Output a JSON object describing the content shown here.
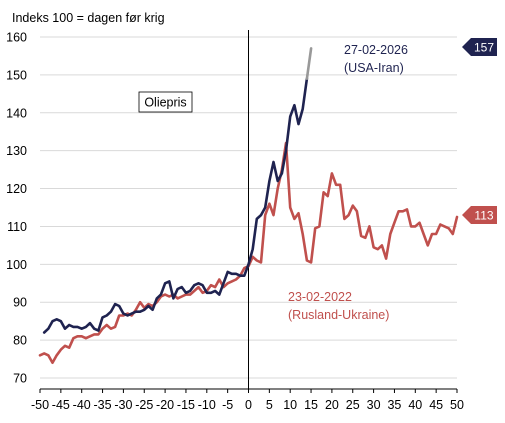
{
  "chart_data": {
    "type": "line",
    "ylabel": "Indeks 100 = dagen før krig",
    "xlim": [
      -50,
      50
    ],
    "ylim": [
      70,
      160
    ],
    "x_ticks": [
      -50,
      -45,
      -40,
      -35,
      -30,
      -25,
      -20,
      -15,
      -10,
      -5,
      0,
      5,
      10,
      15,
      20,
      25,
      30,
      35,
      40,
      45,
      50
    ],
    "y_ticks": [
      70,
      80,
      90,
      100,
      110,
      120,
      130,
      140,
      150,
      160
    ],
    "grid": "horizontal",
    "annotation_box": "Oliepris",
    "colors": {
      "usa_iran": "#1f2350",
      "usa_iran_projection": "#999999",
      "russia_ukraine": "#c0504d",
      "grid": "#d9d9d9",
      "axis": "#000000"
    },
    "series": [
      {
        "key": "usa_iran",
        "label_date": "27-02-2026",
        "label_name": "(USA-Iran)",
        "end_value": "157",
        "x": [
          -49,
          -48,
          -47,
          -46,
          -45,
          -44,
          -43,
          -42,
          -41,
          -40,
          -39,
          -38,
          -37,
          -36,
          -35,
          -34,
          -33,
          -32,
          -31,
          -30,
          -29,
          -28,
          -27,
          -26,
          -25,
          -24,
          -23,
          -22,
          -21,
          -20,
          -19,
          -18,
          -17,
          -16,
          -15,
          -14,
          -13,
          -12,
          -11,
          -10,
          -9,
          -8,
          -7,
          -6,
          -5,
          -4,
          -3,
          -2,
          -1,
          0,
          1,
          2,
          3,
          4,
          5,
          6,
          7,
          8,
          9,
          10,
          11,
          12,
          13,
          14
        ],
        "values": [
          82,
          83,
          85,
          85.5,
          85,
          83,
          84,
          83.5,
          83.5,
          83,
          83.5,
          84.5,
          83,
          82.5,
          86,
          86.5,
          87.5,
          89.5,
          89,
          87,
          86.5,
          87,
          87.5,
          87.5,
          88,
          89,
          88,
          91,
          92,
          95,
          95.5,
          91,
          93.5,
          94,
          92.5,
          93,
          94.5,
          95,
          94.5,
          92.5,
          92.5,
          93,
          92,
          95,
          98,
          97.5,
          97.5,
          97,
          97,
          100,
          104,
          112,
          113,
          115,
          122,
          127,
          122,
          124,
          130,
          139,
          142,
          137,
          141,
          149
        ]
      },
      {
        "key": "usa_iran_projection",
        "x": [
          14,
          15
        ],
        "values": [
          149,
          157
        ]
      },
      {
        "key": "russia_ukraine",
        "label_date": "23-02-2022",
        "label_name": "(Rusland-Ukraine)",
        "end_value": "113",
        "x": [
          -50,
          -49,
          -48,
          -47,
          -46,
          -45,
          -44,
          -43,
          -42,
          -41,
          -40,
          -39,
          -38,
          -37,
          -36,
          -35,
          -34,
          -33,
          -32,
          -31,
          -30,
          -29,
          -28,
          -27,
          -26,
          -25,
          -24,
          -23,
          -22,
          -21,
          -20,
          -19,
          -18,
          -17,
          -16,
          -15,
          -14,
          -13,
          -12,
          -11,
          -10,
          -9,
          -8,
          -7,
          -6,
          -5,
          -4,
          -3,
          -2,
          -1,
          0,
          1,
          2,
          3,
          4,
          5,
          6,
          7,
          8,
          9,
          10,
          11,
          12,
          13,
          14,
          15,
          16,
          17,
          18,
          19,
          20,
          21,
          22,
          23,
          24,
          25,
          26,
          27,
          28,
          29,
          30,
          31,
          32,
          33,
          34,
          35,
          36,
          37,
          38,
          39,
          40,
          41,
          42,
          43,
          44,
          45,
          46,
          47,
          48,
          49,
          50
        ],
        "values": [
          76,
          76.5,
          76,
          74,
          76,
          77.5,
          78.5,
          78,
          80.5,
          81,
          81,
          80.5,
          81,
          81.5,
          81.5,
          83,
          84,
          83,
          83.5,
          86.5,
          86.5,
          87,
          86.5,
          88,
          90,
          88.5,
          89.5,
          89,
          90,
          91.5,
          92,
          91.5,
          92,
          91,
          91.5,
          92,
          92,
          93,
          94,
          92.5,
          93,
          94.5,
          94,
          96,
          94,
          95,
          95.5,
          96,
          97,
          99,
          99.5,
          102,
          101,
          100.5,
          113,
          116,
          113,
          120,
          125,
          132,
          115,
          112,
          113.5,
          108,
          101,
          100.5,
          109.5,
          110,
          119,
          118,
          124,
          121,
          121,
          112,
          113,
          115.5,
          114,
          107.5,
          107,
          110,
          104.5,
          104,
          105,
          101.5,
          108,
          111,
          114,
          114,
          114.5,
          110,
          110,
          111,
          108,
          105,
          108,
          108,
          110.5,
          110,
          109.5,
          108,
          112.5
        ]
      }
    ]
  }
}
